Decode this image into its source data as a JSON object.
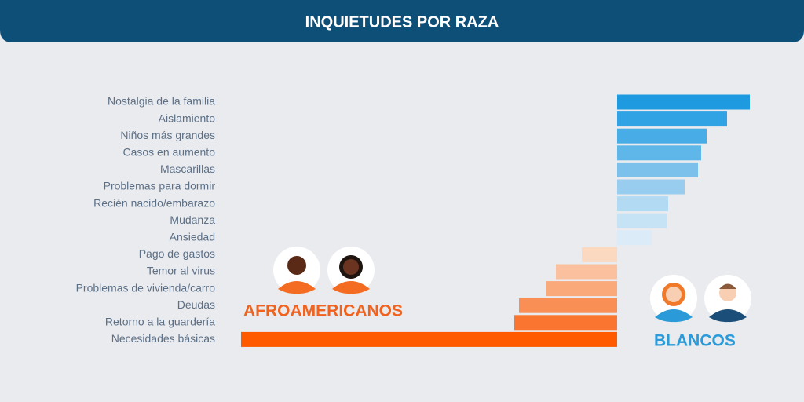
{
  "chart_data": {
    "type": "bar",
    "orientation": "diverging-horizontal",
    "title": "INQUIETUDES POR RAZA",
    "categories": [
      "Nostalgia de la familia",
      "Aislamiento",
      "Niños más grandes",
      "Casos en aumento",
      "Mascarillas",
      "Problemas para dormir",
      "Recién nacido/embarazo",
      "Mudanza",
      "Ansiedad",
      "Pago de gastos",
      "Temor al virus",
      "Problemas de vivienda/carro",
      "Deudas",
      "Retorno a la guardería",
      "Necesidades básicas"
    ],
    "xlim": [
      0,
      480
    ],
    "series": [
      {
        "name": "BLANCOS",
        "side": "right",
        "color": "#2a9ad8",
        "colors": [
          "#1e9be0",
          "#2fa3e3",
          "#48ade6",
          "#5fb6e9",
          "#7cc1ec",
          "#98cdef",
          "#b3daf3",
          "#c6e2f5",
          "#dbebf8",
          null,
          null,
          null,
          null,
          null,
          null
        ],
        "values": [
          169,
          140,
          114,
          107,
          103,
          86,
          65,
          63,
          44,
          null,
          null,
          null,
          null,
          null,
          null
        ]
      },
      {
        "name": "AFROAMERICANOS",
        "side": "left",
        "color": "#f0621e",
        "colors": [
          null,
          null,
          null,
          null,
          null,
          null,
          null,
          null,
          null,
          "#fbd8c0",
          "#fbc19e",
          "#faa97a",
          "#f98f55",
          "#fa7630",
          "#ff5a00"
        ],
        "values": [
          null,
          null,
          null,
          null,
          null,
          null,
          null,
          null,
          null,
          45,
          78,
          90,
          125,
          131,
          479
        ]
      }
    ]
  }
}
